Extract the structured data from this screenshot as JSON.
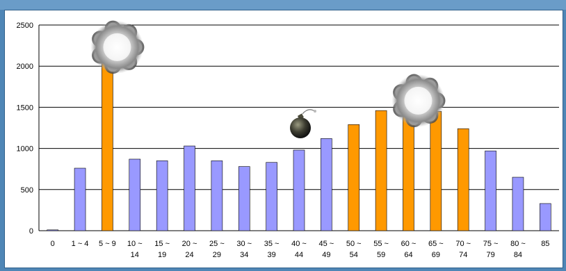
{
  "chart_data": {
    "type": "bar",
    "categories": [
      [
        "0"
      ],
      [
        "1 ~ 4"
      ],
      [
        "5 ~ 9"
      ],
      [
        "10 ~",
        "14"
      ],
      [
        "15 ~",
        "19"
      ],
      [
        "20 ~",
        "24"
      ],
      [
        "25 ~",
        "29"
      ],
      [
        "30 ~",
        "34"
      ],
      [
        "35 ~",
        "39"
      ],
      [
        "40 ~",
        "44"
      ],
      [
        "45 ~",
        "49"
      ],
      [
        "50 ~",
        "54"
      ],
      [
        "55 ~",
        "59"
      ],
      [
        "60 ~",
        "64"
      ],
      [
        "65 ~",
        "69"
      ],
      [
        "70 ~",
        "74"
      ],
      [
        "75 ~",
        "79"
      ],
      [
        "80 ~",
        "84"
      ],
      [
        "85"
      ]
    ],
    "values": [
      10,
      760,
      2180,
      870,
      850,
      1030,
      850,
      780,
      830,
      980,
      1120,
      1290,
      1460,
      1530,
      1450,
      1240,
      970,
      650,
      330
    ],
    "highlighted": [
      false,
      false,
      true,
      false,
      false,
      false,
      false,
      false,
      false,
      false,
      false,
      true,
      true,
      true,
      true,
      true,
      false,
      false,
      false
    ],
    "colors": {
      "normal": "#9999ff",
      "highlight": "#ff9900",
      "grid": "#000000"
    },
    "yticks": [
      0,
      500,
      1000,
      1500,
      2000,
      2500
    ],
    "ylim": [
      0,
      2500
    ],
    "grid": true,
    "title": "",
    "xlabel": "",
    "ylabel": "",
    "decorations": [
      {
        "icon": "explosion-icon",
        "category_index": 2
      },
      {
        "icon": "bomb-icon",
        "category_index": 9
      },
      {
        "icon": "explosion-icon",
        "category_index": 13
      }
    ]
  }
}
